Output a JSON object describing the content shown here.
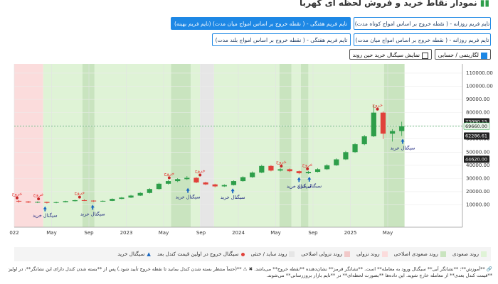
{
  "header": {
    "title": "نمودار نقاط خرید و فروش لحظه ای کهربا"
  },
  "buttons": [
    {
      "label": "تایم فریم روزانه - ( نقطه خروج بر اساس امواج کوتاه مدت)",
      "active": false
    },
    {
      "label": "تایم فریم هفتگی - ( نقطه خروج بر اساس امواج میان مدت) (تایم فریم بهینه)",
      "active": true
    },
    {
      "label": "تایم فریم روزانه - ( نقطه خروج بر اساس امواج میان مدت)",
      "active": false
    },
    {
      "label": "تایم فریم هفتگی - ( نقطه خروج بر اساس امواج بلند مدت)",
      "active": false
    }
  ],
  "checkboxes": [
    {
      "label": "لگاریتمی / حسابی",
      "checked": true
    },
    {
      "label": "نمایش سیگنال خرید حین روند",
      "checked": false
    }
  ],
  "chart_data": {
    "type": "candlestick",
    "up_color": "#2e9e4a",
    "down_color": "#e0413a",
    "xlim": [
      0,
      48
    ],
    "xticks": [
      {
        "value": 0,
        "label": "022"
      },
      {
        "value": 4,
        "label": "May"
      },
      {
        "value": 8,
        "label": "Sep"
      },
      {
        "value": 12,
        "label": "2023"
      },
      {
        "value": 16,
        "label": "May"
      },
      {
        "value": 20,
        "label": "Sep"
      },
      {
        "value": 24,
        "label": "2024"
      },
      {
        "value": 28,
        "label": "May"
      },
      {
        "value": 32,
        "label": "Sep"
      },
      {
        "value": 36,
        "label": "2025"
      },
      {
        "value": 40,
        "label": "May"
      }
    ],
    "ylim": [
      -7000,
      117000
    ],
    "yticks": [
      {
        "value": 10000,
        "label": "10000.00"
      },
      {
        "value": 20000,
        "label": "20000.00"
      },
      {
        "value": 30000,
        "label": "30000.00"
      },
      {
        "value": 40000,
        "label": "40000.00"
      },
      {
        "value": 50000,
        "label": "50000.00"
      },
      {
        "value": 60000,
        "label": "60000.00"
      },
      {
        "value": 70000,
        "label": "70000.00"
      },
      {
        "value": 80000,
        "label": "80000.00"
      },
      {
        "value": 90000,
        "label": "90000.00"
      },
      {
        "value": 100000,
        "label": "100000.00"
      },
      {
        "value": 110000,
        "label": "110000.00"
      }
    ],
    "grid": true,
    "price_labels": [
      {
        "value": 73090.15,
        "label": "73090.15",
        "dark": true
      },
      {
        "value": 69660,
        "label": "69660.00",
        "dark": false
      },
      {
        "value": 62286.61,
        "label": "62286.61",
        "dark": true
      },
      {
        "value": 44620,
        "label": "44620.00",
        "dark": true
      }
    ],
    "current_price_index": 1,
    "zones": [
      {
        "from": 0,
        "to": 3.1,
        "color": "#fbdcdc"
      },
      {
        "from": 3.1,
        "to": 7.3,
        "color": "#dff3d6"
      },
      {
        "from": 7.3,
        "to": 8.6,
        "color": "#c9e4bf"
      },
      {
        "from": 8.6,
        "to": 16.8,
        "color": "#dff3d6"
      },
      {
        "from": 16.8,
        "to": 18.9,
        "color": "#c9e4bf"
      },
      {
        "from": 18.9,
        "to": 19.9,
        "color": "#dff3d6"
      },
      {
        "from": 19.9,
        "to": 21.4,
        "color": "#e6e6e6"
      },
      {
        "from": 21.4,
        "to": 28.4,
        "color": "#dff3d6"
      },
      {
        "from": 28.4,
        "to": 29.7,
        "color": "#c9e4bf"
      },
      {
        "from": 29.7,
        "to": 30.7,
        "color": "#dff3d6"
      },
      {
        "from": 30.7,
        "to": 31.5,
        "color": "#c9e4bf"
      },
      {
        "from": 31.5,
        "to": 39.6,
        "color": "#dff3d6"
      },
      {
        "from": 39.6,
        "to": 41.8,
        "color": "#c9e4bf"
      }
    ],
    "candles": [
      {
        "x": 0.5,
        "open": 13000,
        "high": 13600,
        "low": 11700,
        "close": 12500
      },
      {
        "x": 1.5,
        "open": 12500,
        "high": 12900,
        "low": 11400,
        "close": 11800
      },
      {
        "x": 2.5,
        "open": 11800,
        "high": 12600,
        "low": 11300,
        "close": 12200
      },
      {
        "x": 3.5,
        "open": 12200,
        "high": 12400,
        "low": 11000,
        "close": 11500
      },
      {
        "x": 4.5,
        "open": 11500,
        "high": 12400,
        "low": 11200,
        "close": 12000
      },
      {
        "x": 5.5,
        "open": 12000,
        "high": 13100,
        "low": 11800,
        "close": 12800
      },
      {
        "x": 6.5,
        "open": 12800,
        "high": 13900,
        "low": 12500,
        "close": 13500
      },
      {
        "x": 7.5,
        "open": 13500,
        "high": 14200,
        "low": 12900,
        "close": 13200
      },
      {
        "x": 8.5,
        "open": 13200,
        "high": 13400,
        "low": 12200,
        "close": 12600
      },
      {
        "x": 9.5,
        "open": 12600,
        "high": 13300,
        "low": 12300,
        "close": 13000
      },
      {
        "x": 10.5,
        "open": 13000,
        "high": 14900,
        "low": 12800,
        "close": 14500
      },
      {
        "x": 11.5,
        "open": 14500,
        "high": 15900,
        "low": 14200,
        "close": 15500
      },
      {
        "x": 12.5,
        "open": 15500,
        "high": 17500,
        "low": 15200,
        "close": 17000
      },
      {
        "x": 13.5,
        "open": 17000,
        "high": 19600,
        "low": 16700,
        "close": 19000
      },
      {
        "x": 14.5,
        "open": 19000,
        "high": 22600,
        "low": 18600,
        "close": 22000
      },
      {
        "x": 15.5,
        "open": 22000,
        "high": 26800,
        "low": 21500,
        "close": 26000
      },
      {
        "x": 16.5,
        "open": 26000,
        "high": 28900,
        "low": 25400,
        "close": 28000
      },
      {
        "x": 17.5,
        "open": 28000,
        "high": 30200,
        "low": 27300,
        "close": 29500
      },
      {
        "x": 18.5,
        "open": 29500,
        "high": 31800,
        "low": 28900,
        "close": 30500
      },
      {
        "x": 19.5,
        "open": 30500,
        "high": 31000,
        "low": 26400,
        "close": 27000
      },
      {
        "x": 20.5,
        "open": 27000,
        "high": 27500,
        "low": 25000,
        "close": 25500
      },
      {
        "x": 21.5,
        "open": 25500,
        "high": 26000,
        "low": 23300,
        "close": 24000
      },
      {
        "x": 22.5,
        "open": 24000,
        "high": 25600,
        "low": 23600,
        "close": 25000
      },
      {
        "x": 23.5,
        "open": 25000,
        "high": 28600,
        "low": 24700,
        "close": 28000
      },
      {
        "x": 24.5,
        "open": 28000,
        "high": 31700,
        "low": 27500,
        "close": 31000
      },
      {
        "x": 25.5,
        "open": 31000,
        "high": 35300,
        "low": 30500,
        "close": 34500
      },
      {
        "x": 26.5,
        "open": 34500,
        "high": 40500,
        "low": 34000,
        "close": 39500
      },
      {
        "x": 27.5,
        "open": 39500,
        "high": 40200,
        "low": 35400,
        "close": 36000
      },
      {
        "x": 28.5,
        "open": 36000,
        "high": 37800,
        "low": 35300,
        "close": 37000
      },
      {
        "x": 29.5,
        "open": 37000,
        "high": 37600,
        "low": 34900,
        "close": 35500
      },
      {
        "x": 30.5,
        "open": 35500,
        "high": 36000,
        "low": 33200,
        "close": 34000
      },
      {
        "x": 31.5,
        "open": 34000,
        "high": 35700,
        "low": 33500,
        "close": 35000
      },
      {
        "x": 32.5,
        "open": 35000,
        "high": 37800,
        "low": 34600,
        "close": 37000
      },
      {
        "x": 33.5,
        "open": 37000,
        "high": 40800,
        "low": 36500,
        "close": 40000
      },
      {
        "x": 34.5,
        "open": 40000,
        "high": 45300,
        "low": 39600,
        "close": 44500
      },
      {
        "x": 35.5,
        "open": 44500,
        "high": 50900,
        "low": 44000,
        "close": 50000
      },
      {
        "x": 36.5,
        "open": 50000,
        "high": 56800,
        "low": 49500,
        "close": 56000
      },
      {
        "x": 37.5,
        "open": 56000,
        "high": 63000,
        "low": 55300,
        "close": 62000
      },
      {
        "x": 38.5,
        "open": 62000,
        "high": 86000,
        "low": 61500,
        "close": 80000
      },
      {
        "x": 39.5,
        "open": 80000,
        "high": 81000,
        "low": 60000,
        "close": 64000
      },
      {
        "x": 40.5,
        "open": 64000,
        "high": 67500,
        "low": 58000,
        "close": 66000
      },
      {
        "x": 41.5,
        "open": 66000,
        "high": 73090.15,
        "low": 62286.61,
        "close": 69660
      }
    ],
    "exit_label": "خروج",
    "buy_label": "سیگنال خرید",
    "exit_signals": [
      {
        "x": 0.3,
        "y": 13600
      },
      {
        "x": 2.6,
        "y": 12900
      },
      {
        "x": 7.0,
        "y": 14200
      },
      {
        "x": 16.6,
        "y": 28900
      },
      {
        "x": 19.9,
        "y": 31000
      },
      {
        "x": 28.6,
        "y": 37800
      },
      {
        "x": 31.4,
        "y": 35700
      },
      {
        "x": 38.9,
        "y": 81000
      }
    ],
    "buy_signals": [
      {
        "x": 3.3,
        "y": 11000
      },
      {
        "x": 8.4,
        "y": 12200
      },
      {
        "x": 18.6,
        "y": 25000
      },
      {
        "x": 23.4,
        "y": 24700
      },
      {
        "x": 30.5,
        "y": 33200
      },
      {
        "x": 31.6,
        "y": 33500
      },
      {
        "x": 41.6,
        "y": 62286.61
      }
    ]
  },
  "legend": [
    {
      "label": "روند صعودی",
      "color": "#dff3d6",
      "shape": "square"
    },
    {
      "label": "روند صعودی اصلاحی",
      "color": "#c9e4bf",
      "shape": "square"
    },
    {
      "label": "روند نزولی",
      "color": "#fbdcdc",
      "shape": "square"
    },
    {
      "label": "روند نزولی اصلاحی",
      "color": "#f1c9c9",
      "shape": "square"
    },
    {
      "label": "روند ساید / خنثی",
      "color": "#e6e6e6",
      "shape": "square"
    },
    {
      "label": "سیگنال خروج در اولین قیمت کندل بعد",
      "color": "#e0413a",
      "shape": "dot"
    },
    {
      "label": "سیگنال خرید",
      "color": "#1565c0",
      "shape": "arrow"
    }
  ],
  "footnote": [
    "🔗 **آموزش**: **نشانگر آبی** سیگنال ورود به معامله** است. **نشانگر قرمز** نشان‌دهنده **نقطه خروج** می‌باشد. ✖ ⚠ **(حتماً منتظر بسته شدن کندل بمانید تا نقطه خروج تأیید شود.) پس از **بسته شدن کندل دارای این نشانگر**، در اولین",
    "**قیمت کندل بعدی** از معامله خارج شوید. این داده‌ها **بصورت لحظه‌ای** در **تایم بازار بروزرسانی** می‌شوند."
  ]
}
